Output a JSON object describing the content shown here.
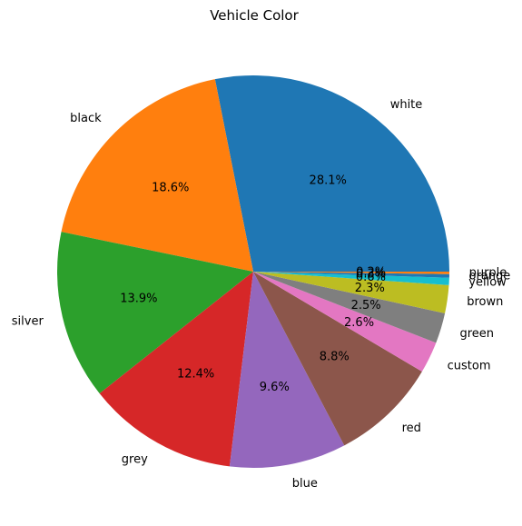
{
  "chart_data": {
    "type": "pie",
    "title": "Vehicle Color",
    "start_angle_deg": 0,
    "direction": "counterclockwise",
    "slices": [
      {
        "label": "white",
        "value": 28.1,
        "pct_text": "28.1%",
        "color": "#1f77b4"
      },
      {
        "label": "black",
        "value": 18.6,
        "pct_text": "18.6%",
        "color": "#ff7f0e"
      },
      {
        "label": "silver",
        "value": 13.9,
        "pct_text": "13.9%",
        "color": "#2ca02c"
      },
      {
        "label": "grey",
        "value": 12.4,
        "pct_text": "12.4%",
        "color": "#d62728"
      },
      {
        "label": "blue",
        "value": 9.6,
        "pct_text": "9.6%",
        "color": "#9467bd"
      },
      {
        "label": "red",
        "value": 8.8,
        "pct_text": "8.8%",
        "color": "#8c564b"
      },
      {
        "label": "custom",
        "value": 2.6,
        "pct_text": "2.6%",
        "color": "#e377c2"
      },
      {
        "label": "green",
        "value": 2.5,
        "pct_text": "2.5%",
        "color": "#7f7f7f"
      },
      {
        "label": "brown",
        "value": 2.3,
        "pct_text": "2.3%",
        "color": "#bcbd22"
      },
      {
        "label": "yellow",
        "value": 0.6,
        "pct_text": "0.6%",
        "color": "#17becf"
      },
      {
        "label": "orange",
        "value": 0.3,
        "pct_text": "0.3%",
        "color": "#1f77b4"
      },
      {
        "label": "purple",
        "value": 0.2,
        "pct_text": "0.2%",
        "color": "#ff7f0e"
      }
    ]
  }
}
